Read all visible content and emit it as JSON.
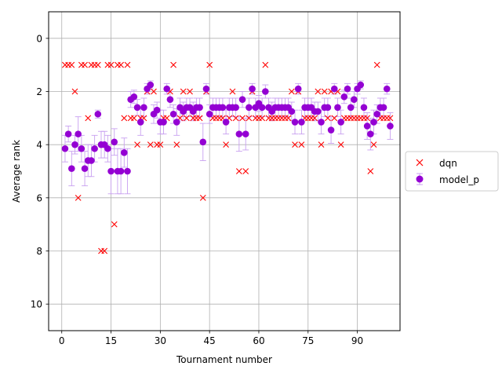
{
  "chart_data": {
    "type": "scatter",
    "xlabel": "Tournament number",
    "ylabel": "Average rank",
    "xlim": [
      -4,
      103
    ],
    "ylim": [
      -1,
      11
    ],
    "y_inverted": true,
    "xticks": [
      0,
      15,
      30,
      45,
      60,
      75,
      90
    ],
    "yticks": [
      0,
      2,
      4,
      6,
      8,
      10
    ],
    "grid": true,
    "legend_position": "center-right",
    "series": [
      {
        "name": "dqn",
        "marker": "x",
        "color": "#ff0000",
        "x": [
          1,
          2,
          3,
          4,
          5,
          6,
          7,
          8,
          9,
          10,
          11,
          12,
          13,
          14,
          15,
          16,
          17,
          18,
          19,
          20,
          21,
          22,
          23,
          24,
          25,
          26,
          27,
          28,
          29,
          30,
          31,
          32,
          33,
          34,
          35,
          36,
          37,
          38,
          39,
          40,
          41,
          42,
          43,
          44,
          45,
          46,
          47,
          48,
          49,
          50,
          51,
          52,
          53,
          54,
          55,
          56,
          57,
          58,
          59,
          60,
          61,
          62,
          63,
          64,
          65,
          66,
          67,
          68,
          69,
          70,
          71,
          72,
          73,
          74,
          75,
          76,
          77,
          78,
          79,
          80,
          81,
          82,
          83,
          84,
          85,
          86,
          87,
          88,
          89,
          90,
          91,
          92,
          93,
          94,
          95,
          96,
          97,
          98,
          99,
          100
        ],
        "y": [
          1,
          1,
          1,
          2,
          6,
          1,
          1,
          3,
          1,
          1,
          1,
          8,
          8,
          1,
          1,
          7,
          1,
          1,
          3,
          1,
          3,
          3,
          4,
          3,
          3,
          2,
          4,
          2,
          4,
          4,
          3,
          3,
          2,
          1,
          4,
          3,
          2,
          3,
          2,
          3,
          3,
          3,
          6,
          2,
          1,
          3,
          3,
          3,
          3,
          4,
          3,
          2,
          3,
          5,
          3,
          5,
          3,
          2,
          3,
          3,
          3,
          1,
          3,
          3,
          3,
          3,
          3,
          3,
          3,
          2,
          4,
          2,
          4,
          3,
          3,
          3,
          3,
          2,
          4,
          2,
          3,
          2,
          3,
          2,
          4,
          3,
          3,
          3,
          3,
          3,
          3,
          3,
          3,
          5,
          4,
          1,
          3,
          3,
          3,
          3
        ]
      },
      {
        "name": "model_p",
        "marker": "o",
        "color": "#9400d3",
        "x": [
          1,
          2,
          3,
          4,
          5,
          6,
          7,
          8,
          9,
          10,
          11,
          12,
          13,
          14,
          15,
          16,
          17,
          18,
          19,
          20,
          21,
          22,
          23,
          24,
          25,
          26,
          27,
          28,
          29,
          30,
          31,
          32,
          33,
          34,
          35,
          36,
          37,
          38,
          39,
          40,
          41,
          42,
          43,
          44,
          45,
          46,
          47,
          48,
          49,
          50,
          51,
          52,
          53,
          54,
          55,
          56,
          57,
          58,
          59,
          60,
          61,
          62,
          63,
          64,
          65,
          66,
          67,
          68,
          69,
          70,
          71,
          72,
          73,
          74,
          75,
          76,
          77,
          78,
          79,
          80,
          81,
          82,
          83,
          84,
          85,
          86,
          87,
          88,
          89,
          90,
          91,
          92,
          93,
          94,
          95,
          96,
          97,
          98,
          99,
          100
        ],
        "y": [
          4.15,
          3.6,
          4.9,
          4.0,
          3.6,
          4.15,
          4.9,
          4.6,
          4.6,
          4.15,
          2.85,
          4.0,
          4.0,
          4.15,
          5.0,
          3.9,
          5.0,
          5.0,
          4.3,
          5.0,
          2.3,
          2.2,
          2.6,
          3.15,
          2.6,
          1.9,
          1.75,
          2.85,
          2.7,
          3.15,
          3.15,
          1.9,
          2.3,
          2.85,
          3.15,
          2.6,
          2.75,
          2.6,
          2.6,
          2.75,
          2.6,
          2.6,
          3.9,
          1.9,
          2.85,
          2.6,
          2.6,
          2.6,
          2.6,
          3.15,
          2.6,
          2.6,
          2.6,
          3.6,
          2.3,
          3.6,
          2.6,
          1.9,
          2.6,
          2.45,
          2.6,
          2.0,
          2.6,
          2.75,
          2.6,
          2.6,
          2.6,
          2.6,
          2.6,
          2.75,
          3.15,
          1.9,
          3.15,
          2.6,
          2.6,
          2.6,
          2.75,
          2.75,
          3.15,
          2.6,
          2.6,
          3.45,
          1.9,
          2.6,
          3.15,
          2.2,
          1.9,
          2.6,
          2.3,
          1.9,
          1.75,
          2.6,
          3.3,
          3.6,
          3.15,
          2.85,
          2.6,
          2.6,
          1.9,
          3.3
        ],
        "err": [
          0.5,
          0.3,
          0.65,
          0.35,
          0.65,
          0.5,
          0.65,
          0.6,
          0.6,
          0.5,
          0.15,
          0.5,
          0.5,
          0.5,
          0.85,
          0.5,
          0.85,
          0.85,
          0.55,
          0.85,
          0.3,
          0.25,
          0.3,
          0.5,
          0.35,
          0.2,
          0.15,
          0.35,
          0.3,
          0.45,
          0.45,
          0.2,
          0.3,
          0.35,
          0.5,
          0.35,
          0.35,
          0.35,
          0.35,
          0.35,
          0.35,
          0.35,
          0.7,
          0.2,
          0.35,
          0.35,
          0.35,
          0.35,
          0.35,
          0.45,
          0.35,
          0.35,
          0.35,
          0.65,
          0.3,
          0.6,
          0.35,
          0.2,
          0.35,
          0.3,
          0.35,
          0.25,
          0.35,
          0.35,
          0.35,
          0.35,
          0.35,
          0.35,
          0.35,
          0.35,
          0.45,
          0.2,
          0.45,
          0.35,
          0.35,
          0.35,
          0.35,
          0.35,
          0.45,
          0.35,
          0.35,
          0.5,
          0.2,
          0.35,
          0.45,
          0.25,
          0.2,
          0.35,
          0.3,
          0.2,
          0.15,
          0.35,
          0.5,
          0.6,
          0.45,
          0.35,
          0.35,
          0.35,
          0.2,
          0.5
        ]
      }
    ]
  }
}
